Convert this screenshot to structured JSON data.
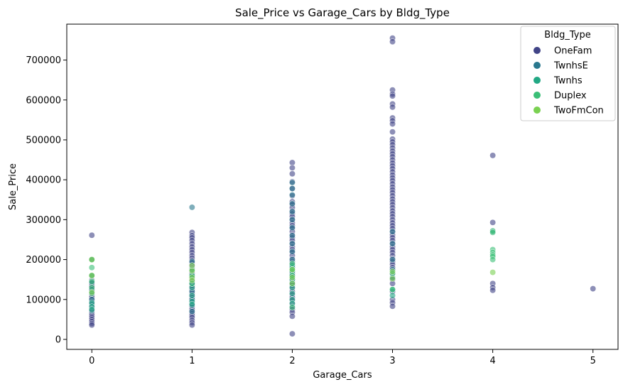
{
  "chart_data": {
    "type": "scatter",
    "title": "Sale_Price vs Garage_Cars by Bldg_Type",
    "xlabel": "Garage_Cars",
    "ylabel": "Sale_Price",
    "xlim": [
      -0.25,
      5.25
    ],
    "ylim": [
      -25000,
      790000
    ],
    "xticks": [
      0,
      1,
      2,
      3,
      4,
      5
    ],
    "yticks": [
      0,
      100000,
      200000,
      300000,
      400000,
      500000,
      600000,
      700000
    ],
    "grid": false,
    "legend": {
      "title": "Bldg_Type",
      "placement": "top-right"
    },
    "series": [
      {
        "name": "OneFam",
        "color": "#414487",
        "points": [
          [
            0,
            261000
          ],
          [
            0,
            200000
          ],
          [
            0,
            160000
          ],
          [
            0,
            148000
          ],
          [
            0,
            143000
          ],
          [
            0,
            140000
          ],
          [
            0,
            135000
          ],
          [
            0,
            130000
          ],
          [
            0,
            125000
          ],
          [
            0,
            120000
          ],
          [
            0,
            115000
          ],
          [
            0,
            110000
          ],
          [
            0,
            105000
          ],
          [
            0,
            100000
          ],
          [
            0,
            95000
          ],
          [
            0,
            90000
          ],
          [
            0,
            85000
          ],
          [
            0,
            80000
          ],
          [
            0,
            75000
          ],
          [
            0,
            70000
          ],
          [
            0,
            65000
          ],
          [
            0,
            60000
          ],
          [
            0,
            55000
          ],
          [
            0,
            50000
          ],
          [
            0,
            45000
          ],
          [
            0,
            40000
          ],
          [
            0,
            36000
          ],
          [
            1,
            268000
          ],
          [
            1,
            260000
          ],
          [
            1,
            255000
          ],
          [
            1,
            248000
          ],
          [
            1,
            240000
          ],
          [
            1,
            232000
          ],
          [
            1,
            225000
          ],
          [
            1,
            218000
          ],
          [
            1,
            210000
          ],
          [
            1,
            204000
          ],
          [
            1,
            198000
          ],
          [
            1,
            192000
          ],
          [
            1,
            185000
          ],
          [
            1,
            178000
          ],
          [
            1,
            172000
          ],
          [
            1,
            165000
          ],
          [
            1,
            158000
          ],
          [
            1,
            152000
          ],
          [
            1,
            145000
          ],
          [
            1,
            140000
          ],
          [
            1,
            135000
          ],
          [
            1,
            130000
          ],
          [
            1,
            125000
          ],
          [
            1,
            120000
          ],
          [
            1,
            115000
          ],
          [
            1,
            110000
          ],
          [
            1,
            105000
          ],
          [
            1,
            100000
          ],
          [
            1,
            95000
          ],
          [
            1,
            90000
          ],
          [
            1,
            85000
          ],
          [
            1,
            80000
          ],
          [
            1,
            75000
          ],
          [
            1,
            70000
          ],
          [
            1,
            65000
          ],
          [
            1,
            60000
          ],
          [
            1,
            55000
          ],
          [
            1,
            48000
          ],
          [
            1,
            42000
          ],
          [
            1,
            36000
          ],
          [
            2,
            443000
          ],
          [
            2,
            430000
          ],
          [
            2,
            415000
          ],
          [
            2,
            395000
          ],
          [
            2,
            378000
          ],
          [
            2,
            360000
          ],
          [
            2,
            345000
          ],
          [
            2,
            338000
          ],
          [
            2,
            330000
          ],
          [
            2,
            322000
          ],
          [
            2,
            315000
          ],
          [
            2,
            308000
          ],
          [
            2,
            300000
          ],
          [
            2,
            292000
          ],
          [
            2,
            285000
          ],
          [
            2,
            278000
          ],
          [
            2,
            270000
          ],
          [
            2,
            262000
          ],
          [
            2,
            255000
          ],
          [
            2,
            248000
          ],
          [
            2,
            240000
          ],
          [
            2,
            232000
          ],
          [
            2,
            225000
          ],
          [
            2,
            218000
          ],
          [
            2,
            210000
          ],
          [
            2,
            202000
          ],
          [
            2,
            195000
          ],
          [
            2,
            188000
          ],
          [
            2,
            180000
          ],
          [
            2,
            172000
          ],
          [
            2,
            165000
          ],
          [
            2,
            158000
          ],
          [
            2,
            150000
          ],
          [
            2,
            143000
          ],
          [
            2,
            136000
          ],
          [
            2,
            128000
          ],
          [
            2,
            120000
          ],
          [
            2,
            112000
          ],
          [
            2,
            105000
          ],
          [
            2,
            98000
          ],
          [
            2,
            90000
          ],
          [
            2,
            82000
          ],
          [
            2,
            75000
          ],
          [
            2,
            68000
          ],
          [
            2,
            58000
          ],
          [
            2,
            14000
          ],
          [
            3,
            755000
          ],
          [
            3,
            746000
          ],
          [
            3,
            625000
          ],
          [
            3,
            615000
          ],
          [
            3,
            610000
          ],
          [
            3,
            590000
          ],
          [
            3,
            582000
          ],
          [
            3,
            555000
          ],
          [
            3,
            548000
          ],
          [
            3,
            540000
          ],
          [
            3,
            520000
          ],
          [
            3,
            502000
          ],
          [
            3,
            495000
          ],
          [
            3,
            488000
          ],
          [
            3,
            480000
          ],
          [
            3,
            472000
          ],
          [
            3,
            465000
          ],
          [
            3,
            458000
          ],
          [
            3,
            450000
          ],
          [
            3,
            442000
          ],
          [
            3,
            435000
          ],
          [
            3,
            428000
          ],
          [
            3,
            420000
          ],
          [
            3,
            412000
          ],
          [
            3,
            405000
          ],
          [
            3,
            398000
          ],
          [
            3,
            390000
          ],
          [
            3,
            382000
          ],
          [
            3,
            375000
          ],
          [
            3,
            368000
          ],
          [
            3,
            360000
          ],
          [
            3,
            352000
          ],
          [
            3,
            345000
          ],
          [
            3,
            338000
          ],
          [
            3,
            330000
          ],
          [
            3,
            322000
          ],
          [
            3,
            315000
          ],
          [
            3,
            308000
          ],
          [
            3,
            300000
          ],
          [
            3,
            292000
          ],
          [
            3,
            285000
          ],
          [
            3,
            278000
          ],
          [
            3,
            270000
          ],
          [
            3,
            262000
          ],
          [
            3,
            255000
          ],
          [
            3,
            248000
          ],
          [
            3,
            240000
          ],
          [
            3,
            232000
          ],
          [
            3,
            225000
          ],
          [
            3,
            218000
          ],
          [
            3,
            210000
          ],
          [
            3,
            202000
          ],
          [
            3,
            195000
          ],
          [
            3,
            188000
          ],
          [
            3,
            180000
          ],
          [
            3,
            165000
          ],
          [
            3,
            150000
          ],
          [
            3,
            140000
          ],
          [
            3,
            120000
          ],
          [
            3,
            100000
          ],
          [
            3,
            92000
          ],
          [
            3,
            83000
          ],
          [
            4,
            461000
          ],
          [
            4,
            293000
          ],
          [
            4,
            140000
          ],
          [
            4,
            130000
          ],
          [
            4,
            123000
          ],
          [
            5,
            127000
          ]
        ]
      },
      {
        "name": "TwnhsE",
        "color": "#2a788e",
        "points": [
          [
            0,
            142000
          ],
          [
            0,
            125000
          ],
          [
            0,
            100000
          ],
          [
            0,
            88000
          ],
          [
            0,
            72000
          ],
          [
            1,
            331000
          ],
          [
            1,
            195000
          ],
          [
            1,
            160000
          ],
          [
            1,
            140000
          ],
          [
            1,
            120000
          ],
          [
            1,
            100000
          ],
          [
            1,
            85000
          ],
          [
            1,
            70000
          ],
          [
            2,
            393000
          ],
          [
            2,
            378000
          ],
          [
            2,
            362000
          ],
          [
            2,
            340000
          ],
          [
            2,
            320000
          ],
          [
            2,
            300000
          ],
          [
            2,
            280000
          ],
          [
            2,
            260000
          ],
          [
            2,
            240000
          ],
          [
            2,
            220000
          ],
          [
            2,
            200000
          ],
          [
            2,
            180000
          ],
          [
            2,
            160000
          ],
          [
            2,
            140000
          ],
          [
            3,
            270000
          ],
          [
            3,
            240000
          ],
          [
            3,
            200000
          ],
          [
            3,
            175000
          ],
          [
            3,
            155000
          ],
          [
            4,
            270000
          ]
        ]
      },
      {
        "name": "Twnhs",
        "color": "#22a884",
        "points": [
          [
            0,
            92000
          ],
          [
            0,
            82000
          ],
          [
            0,
            75000
          ],
          [
            1,
            130000
          ],
          [
            1,
            110000
          ],
          [
            1,
            95000
          ],
          [
            1,
            88000
          ],
          [
            2,
            185000
          ],
          [
            2,
            170000
          ],
          [
            2,
            150000
          ],
          [
            2,
            130000
          ],
          [
            2,
            115000
          ],
          [
            2,
            100000
          ],
          [
            2,
            90000
          ],
          [
            3,
            125000
          ],
          [
            3,
            110000
          ]
        ]
      },
      {
        "name": "Duplex",
        "color": "#3bbf77",
        "points": [
          [
            0,
            200000
          ],
          [
            0,
            180000
          ],
          [
            0,
            160000
          ],
          [
            0,
            145000
          ],
          [
            0,
            130000
          ],
          [
            0,
            115000
          ],
          [
            1,
            175000
          ],
          [
            1,
            160000
          ],
          [
            1,
            140000
          ],
          [
            2,
            190000
          ],
          [
            2,
            175000
          ],
          [
            2,
            160000
          ],
          [
            2,
            80000
          ],
          [
            3,
            165000
          ],
          [
            3,
            125000
          ],
          [
            4,
            272000
          ],
          [
            4,
            268000
          ],
          [
            4,
            225000
          ],
          [
            4,
            218000
          ],
          [
            4,
            212000
          ],
          [
            4,
            208000
          ],
          [
            4,
            200000
          ]
        ]
      },
      {
        "name": "TwoFmCon",
        "color": "#7ad151",
        "points": [
          [
            0,
            200000
          ],
          [
            0,
            160000
          ],
          [
            0,
            118000
          ],
          [
            1,
            185000
          ],
          [
            1,
            172000
          ],
          [
            1,
            155000
          ],
          [
            1,
            148000
          ],
          [
            2,
            175000
          ],
          [
            2,
            155000
          ],
          [
            2,
            140000
          ],
          [
            3,
            170000
          ],
          [
            3,
            152000
          ],
          [
            4,
            168000
          ]
        ]
      }
    ]
  }
}
